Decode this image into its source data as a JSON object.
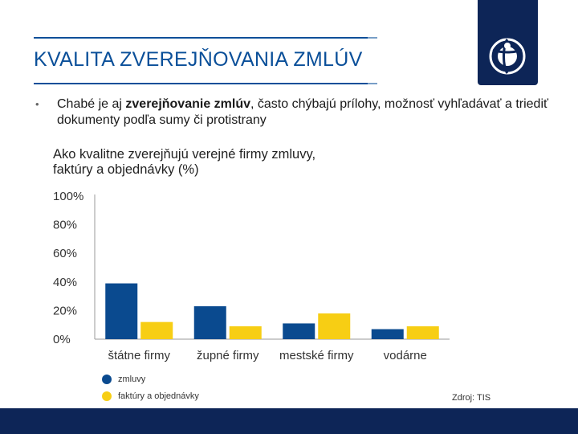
{
  "slide": {
    "title": "KVALITA ZVEREJŇOVANIA ZMLÚV",
    "bullet": {
      "marker": "•",
      "text_before": "Chabé je aj ",
      "text_bold": "zverejňovanie zmlúv",
      "text_after": ", často chýbajú prílohy, možnosť vyhľadávať a triediť dokumenty podľa sumy či protistrany"
    },
    "source": "Zdroj: TIS",
    "logo_icon": "transparency-logo-icon"
  },
  "chart_data": {
    "type": "bar",
    "title": "Ako kvalitne zverejňujú verejné firmy zmluvy, faktúry a objednávky (%)",
    "categories": [
      "štátne firmy",
      "župné firmy",
      "mestské firmy",
      "vodárne"
    ],
    "series": [
      {
        "name": "zmluvy",
        "color": "#0a4a8f",
        "values": [
          39,
          23,
          11,
          7
        ]
      },
      {
        "name": "faktúry a objednávky",
        "color": "#f7ce14",
        "values": [
          12,
          9,
          18,
          9
        ]
      }
    ],
    "ylim": [
      0,
      100
    ],
    "yticks": [
      "0%",
      "20%",
      "40%",
      "60%",
      "80%",
      "100%"
    ],
    "xlabel": "",
    "ylabel": "",
    "grid": false,
    "legend_position": "bottom-left"
  }
}
